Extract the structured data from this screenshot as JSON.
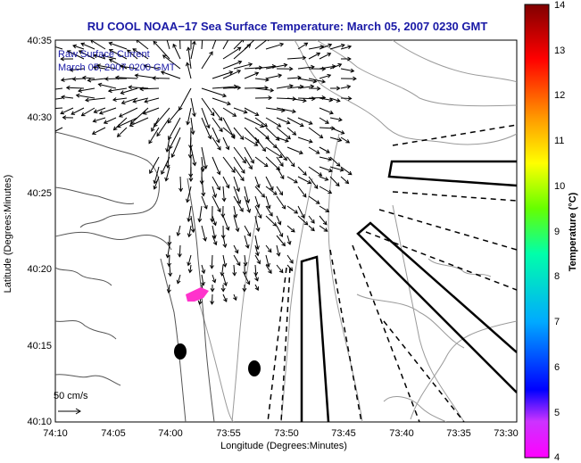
{
  "title": "RU COOL  NOAA−17  Sea Surface Temperature:  March 05, 2007 0230 GMT",
  "inset": {
    "line1": "Raw Surface Current",
    "line2": "March 05, 2007 0200 GMT"
  },
  "scale_label": "50 cm/s",
  "x_axis": {
    "label": "Longitude (Degrees:Minutes)",
    "ticks": [
      "74:10",
      "74:05",
      "74:00",
      "73:55",
      "73:50",
      "73:45",
      "73:40",
      "73:35",
      "73:30"
    ]
  },
  "y_axis": {
    "label": "Latitude (Degrees:Minutes)",
    "ticks": [
      "40:35",
      "40:30",
      "40:25",
      "40:20",
      "40:15",
      "40:10"
    ]
  },
  "colorbar": {
    "label": "Temperature (°C)",
    "ticks": [
      "14",
      "13",
      "12",
      "11",
      "10",
      "9",
      "8",
      "7",
      "6",
      "5",
      "4"
    ],
    "colors": [
      "#ff00ff",
      "#0000ff",
      "#00ffff",
      "#00ff00",
      "#ffff00",
      "#ff8800",
      "#ff0000",
      "#800000"
    ]
  },
  "colors": {
    "title": "#1a1aa6",
    "contour": "#9a9a9a",
    "coast": "#555555",
    "patch": "#ff33cc"
  }
}
